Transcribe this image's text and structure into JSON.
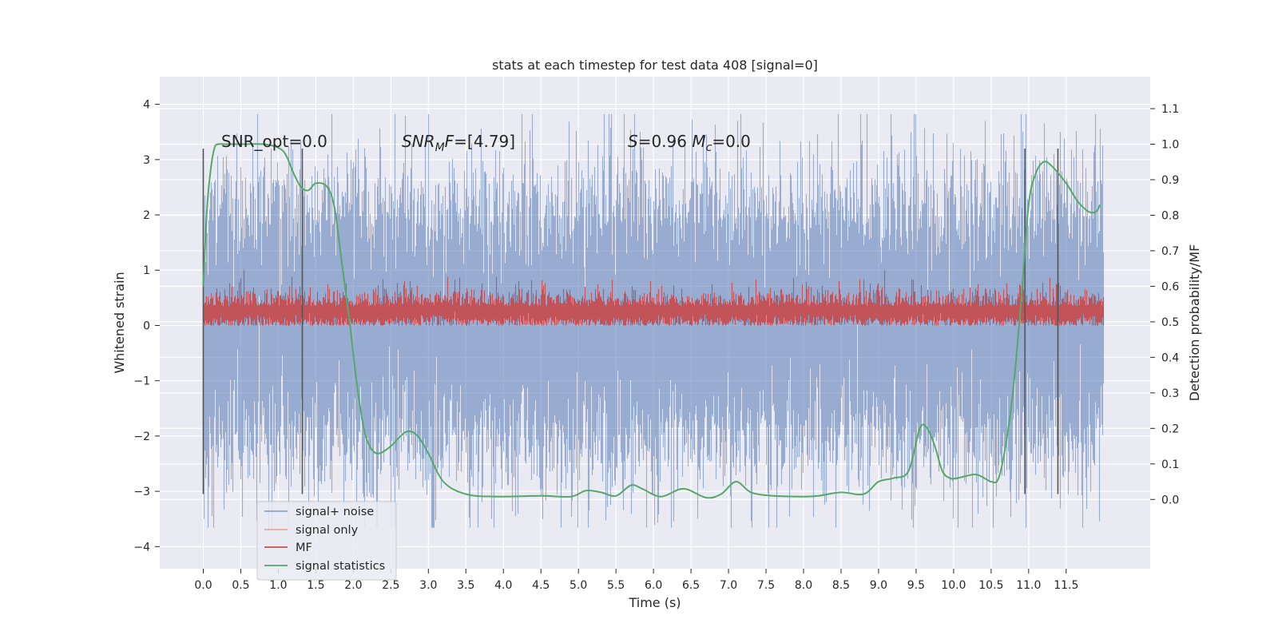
{
  "chart_data": {
    "type": "line",
    "title": "stats at each timestep for test data 408 [signal=0]",
    "xlabel": "Time (s)",
    "ylabel": "Whitened strain",
    "ylabel_right": "Detection probability/MF",
    "xlim": [
      -0.58,
      12.62
    ],
    "ylim": [
      -4.4,
      4.5
    ],
    "ylim_right": [
      -0.195,
      1.19
    ],
    "x_ticks": [
      0.0,
      0.5,
      1.0,
      1.5,
      2.0,
      2.5,
      3.0,
      3.5,
      4.0,
      4.5,
      5.0,
      5.5,
      6.0,
      6.5,
      7.0,
      7.5,
      8.0,
      8.5,
      9.0,
      9.5,
      10.0,
      10.5,
      11.0,
      11.5
    ],
    "x_tick_labels": [
      "0.0",
      "0.5",
      "1.0",
      "1.5",
      "2.0",
      "2.5",
      "3.0",
      "3.5",
      "4.0",
      "4.5",
      "5.0",
      "5.5",
      "6.0",
      "6.5",
      "7.0",
      "7.5",
      "8.0",
      "8.5",
      "9.0",
      "9.5",
      "10.0",
      "10.5",
      "11.0",
      "11.5"
    ],
    "y_ticks": [
      -4,
      -3,
      -2,
      -1,
      0,
      1,
      2,
      3,
      4
    ],
    "y_tick_labels": [
      "−4",
      "−3",
      "−2",
      "−1",
      "0",
      "1",
      "2",
      "3",
      "4"
    ],
    "y_right_ticks": [
      0.0,
      0.1,
      0.2,
      0.3,
      0.4,
      0.5,
      0.6,
      0.7,
      0.8,
      0.9,
      1.0,
      1.1
    ],
    "y_right_tick_labels": [
      "0.0",
      "0.1",
      "0.2",
      "0.3",
      "0.4",
      "0.5",
      "0.6",
      "0.7",
      "0.8",
      "0.9",
      "1.0",
      "1.1"
    ],
    "grid": true,
    "legend_position": "bottom-left",
    "series": [
      {
        "name": "signal+ noise",
        "color": "#4c72b0",
        "kind": "noise",
        "x_range": [
          0.0,
          12.0
        ],
        "typical_range": [
          -2.2,
          2.3
        ],
        "extremes": [
          -3.9,
          4.1
        ],
        "axis": "left"
      },
      {
        "name": "signal only",
        "color": "#dd8452",
        "kind": "flat",
        "values": [],
        "axis": "left"
      },
      {
        "name": "MF",
        "color": "#c44e52",
        "kind": "noise",
        "x_range": [
          0.0,
          12.0
        ],
        "typical_range": [
          0.0,
          0.6
        ],
        "extremes": [
          0.0,
          1.0
        ],
        "axis": "left"
      },
      {
        "name": "signal statistics",
        "color": "#55a868",
        "kind": "line",
        "axis": "right",
        "x": [
          0.0,
          0.05,
          0.1,
          0.15,
          0.2,
          0.3,
          0.5,
          0.8,
          1.0,
          1.1,
          1.2,
          1.3,
          1.4,
          1.5,
          1.65,
          1.75,
          1.85,
          1.95,
          2.05,
          2.15,
          2.25,
          2.35,
          2.5,
          2.7,
          2.85,
          3.0,
          3.2,
          3.5,
          3.9,
          4.5,
          4.9,
          5.1,
          5.3,
          5.5,
          5.7,
          5.85,
          6.1,
          6.4,
          6.7,
          6.9,
          7.1,
          7.3,
          7.6,
          8.0,
          8.2,
          8.5,
          8.8,
          9.0,
          9.2,
          9.4,
          9.55,
          9.65,
          9.75,
          9.85,
          9.95,
          10.05,
          10.3,
          10.5,
          10.6,
          10.7,
          10.8,
          10.9,
          11.0,
          11.1,
          11.2,
          11.3,
          11.5,
          11.65,
          11.8,
          11.9,
          11.95
        ],
        "values": [
          0.6,
          0.82,
          0.93,
          0.99,
          1.0,
          1.0,
          1.0,
          1.0,
          0.99,
          0.97,
          0.92,
          0.88,
          0.87,
          0.89,
          0.88,
          0.82,
          0.66,
          0.5,
          0.32,
          0.19,
          0.14,
          0.13,
          0.15,
          0.19,
          0.18,
          0.13,
          0.05,
          0.015,
          0.008,
          0.01,
          0.008,
          0.025,
          0.02,
          0.01,
          0.04,
          0.03,
          0.008,
          0.03,
          0.005,
          0.015,
          0.05,
          0.02,
          0.01,
          0.008,
          0.01,
          0.02,
          0.015,
          0.05,
          0.06,
          0.08,
          0.2,
          0.2,
          0.15,
          0.08,
          0.06,
          0.06,
          0.07,
          0.05,
          0.06,
          0.16,
          0.32,
          0.56,
          0.83,
          0.92,
          0.95,
          0.94,
          0.89,
          0.84,
          0.81,
          0.81,
          0.83
        ]
      }
    ],
    "vertical_markers": [
      0.0,
      1.32,
      10.95,
      11.39
    ],
    "vertical_marker_range": [
      -3.05,
      3.2
    ],
    "annotations": [
      {
        "label": "SNR_opt=0.0",
        "x": 0.2,
        "y": 3.2
      },
      {
        "label": "SNR_M F=[4.79]",
        "x": 2.6,
        "y": 3.2
      },
      {
        "label": "S=0.96  M_c=0.0",
        "x": 5.6,
        "y": 3.2
      }
    ]
  }
}
